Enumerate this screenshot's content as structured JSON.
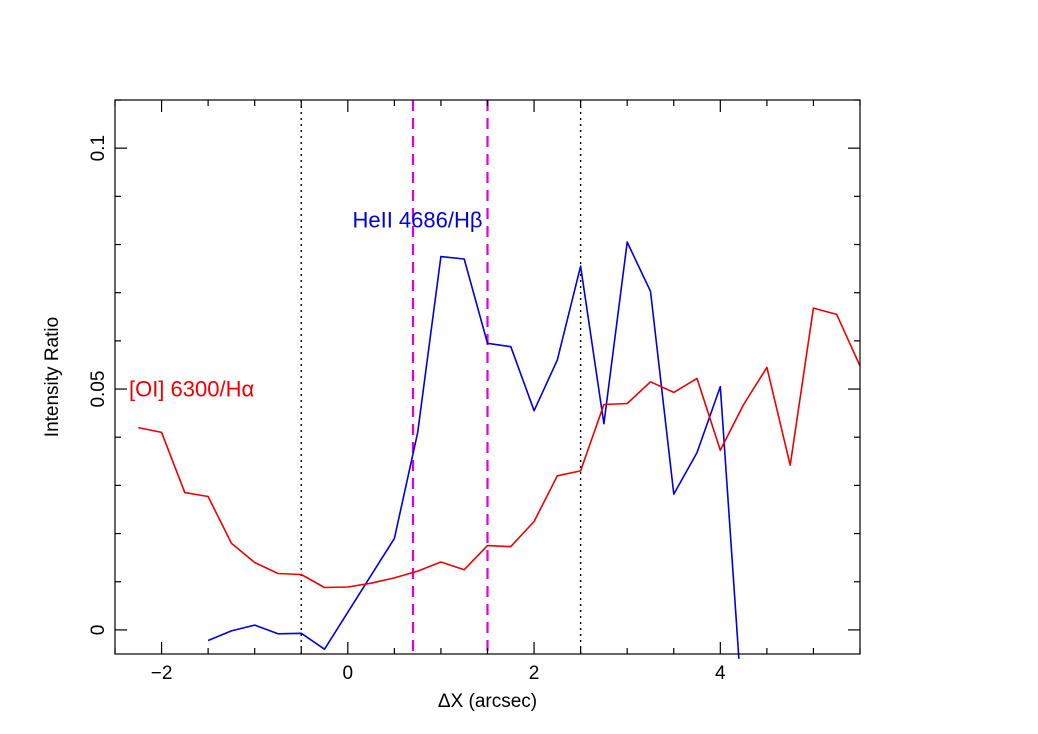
{
  "chart_data": {
    "type": "line",
    "title": "",
    "xlabel": "ΔX (arcsec)",
    "ylabel": "Intensity Ratio",
    "xlim": [
      -2.5,
      5.5
    ],
    "ylim": [
      -0.005,
      0.11
    ],
    "x_ticks": [
      -2,
      0,
      2,
      4
    ],
    "x_tick_labels": [
      "−2",
      "0",
      "2",
      "4"
    ],
    "x_minor_step": 0.5,
    "y_ticks": [
      0,
      0.05,
      0.1
    ],
    "y_tick_labels": [
      "0",
      "0.05",
      "0.1"
    ],
    "y_minor_step": 0.01,
    "grid": false,
    "series": [
      {
        "name": "HeII 4686/Hβ",
        "color": "#0000dd",
        "label_at": [
          0.05,
          0.0835
        ],
        "x": [
          -1.5,
          -1.25,
          -1.0,
          -0.75,
          -0.5,
          -0.25,
          0.5,
          0.75,
          1.0,
          1.25,
          1.5,
          1.75,
          2.0,
          2.25,
          2.5,
          2.75,
          3.0,
          3.25,
          3.5,
          3.75,
          4.0,
          4.2
        ],
        "y": [
          -0.0022,
          -0.0002,
          0.001,
          -0.0008,
          -0.0007,
          -0.004,
          0.019,
          0.041,
          0.0775,
          0.077,
          0.0595,
          0.0588,
          0.0455,
          0.056,
          0.0755,
          0.0428,
          0.0805,
          0.0703,
          0.0282,
          0.0368,
          0.0505,
          -0.006
        ]
      },
      {
        "name": "[OI] 6300/Hα",
        "color": "#ee0000",
        "label_at": [
          -2.35,
          0.0485
        ],
        "x": [
          -2.25,
          -2.0,
          -1.75,
          -1.5,
          -1.25,
          -1.0,
          -0.75,
          -0.5,
          -0.25,
          0.0,
          0.25,
          0.5,
          0.75,
          1.0,
          1.25,
          1.5,
          1.75,
          2.0,
          2.25,
          2.5,
          2.75,
          3.0,
          3.25,
          3.5,
          3.75,
          4.0,
          4.25,
          4.5,
          4.75,
          5.0,
          5.25,
          5.5
        ],
        "y": [
          0.042,
          0.041,
          0.0285,
          0.0277,
          0.018,
          0.014,
          0.0117,
          0.0115,
          0.0088,
          0.0089,
          0.0097,
          0.0108,
          0.0122,
          0.0141,
          0.0125,
          0.0175,
          0.0173,
          0.0225,
          0.032,
          0.033,
          0.0468,
          0.047,
          0.0515,
          0.0493,
          0.0522,
          0.0373,
          0.0468,
          0.0545,
          0.0342,
          0.0668,
          0.0655,
          0.0548
        ]
      }
    ],
    "reference_lines": [
      {
        "x": -0.5,
        "style": "dotted",
        "color": "#000000"
      },
      {
        "x": 2.5,
        "style": "dotted",
        "color": "#000000"
      },
      {
        "x": 0.7,
        "style": "dashed",
        "color": "#dd00dd"
      },
      {
        "x": 1.5,
        "style": "dashed",
        "color": "#dd00dd"
      }
    ]
  }
}
